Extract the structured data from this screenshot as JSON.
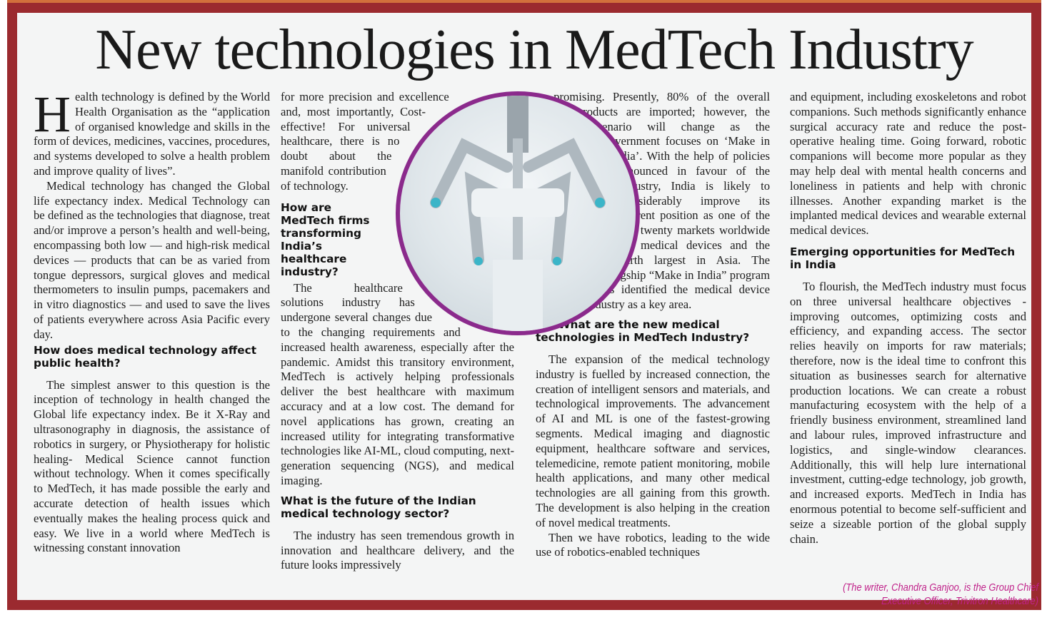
{
  "title": "New technologies in MedTech Industry",
  "colors": {
    "frame": "#9b2a2f",
    "strip": "#d2703c",
    "image_ring": "#8b2a8c",
    "credit": "#c0228a"
  },
  "image": {
    "icon": "surgical-robot-photo"
  },
  "col1": {
    "dropcap": "H",
    "p1": "ealth technology is defined by the World Health Organisation as the “application of organised knowledge and skills in the form of devices, medicines, vaccines, procedures, and systems developed to solve a health problem and improve quality of lives”.",
    "p2": "Medical technology has changed the Global life expectancy index. Medical Technology can be defined as the technologies that diagnose, treat and/or improve a person’s health and well-being, encompassing both low — and high-risk medical devices — products that can be as varied from tongue depressors, surgical gloves and medical thermometers to insulin pumps, pacemakers and in vitro diagnostics — and used to save the lives of patients everywhere across Asia Pacific every day.",
    "h1": "How does medical technology affect public health?",
    "p3": "The simplest answer to this question is the inception of technology in health changed the Global life expectancy index. Be it X-Ray and ultrasonography in diagnosis, the assistance of robotics in surgery, or Physiotherapy for holistic healing- Medical Science cannot function without technology. When it comes specifically to MedTech, it has made possible the early and accurate detection of health issues which eventually makes the healing process quick and easy. We live in a world where MedTech is witnessing constant innovation"
  },
  "col2": {
    "p1": "for more precision and excellence and, most importantly, Cost-effective! For universal healthcare, there is no doubt about the manifold contribution of technology.",
    "h1": "How are MedTech firms transforming India’s healthcare industry?",
    "p2": "The healthcare solutions industry has undergone several changes due to the changing requirements and increased health awareness, especially after the pandemic. Amidst this transitory environment, MedTech is actively helping professionals deliver the best healthcare with maximum accuracy and at a low cost. The demand for novel applications has grown, creating an increased utility for integrating transformative technologies like AI-ML, cloud computing, next-generation sequencing (NGS), and medical imaging.",
    "h2": "What is the future of the Indian medical technology sector?",
    "p3": "The industry has seen tremendous growth in innovation and healthcare delivery, and the future looks impressively"
  },
  "col3": {
    "p1": "promising. Presently, 80% of the overall products are imported; however, the scenario will change as the government focuses on ‘Make in India’. With the help of policies announced in favour of the industry, India is likely to considerably improve its current position as one of the top twenty markets worldwide for medical devices and the fourth largest in Asia. The flagship “Make in India” program has identified the medical device industry as a key area.",
    "h1": "What are the new medical technologies in MedTech Industry?",
    "p2": "The expansion of the medical technology industry is fuelled by increased connection, the creation of intelligent sensors and materials, and technological improvements. The advancement of AI and ML is one of the fastest-growing segments. Medical imaging and diagnostic equipment, healthcare software and services, telemedicine, remote patient monitoring, mobile health applications, and many other medical technologies are all gaining from this growth. The development is also helping in the creation of novel medical treatments.",
    "p3": "Then we have robotics, leading to the wide use of robotics-enabled techniques"
  },
  "col4": {
    "p1": "and equipment, including exoskeletons and robot companions. Such methods significantly enhance surgical accuracy rate and reduce the post-operative healing time. Going forward, robotic companions will become more popular as they may help deal with mental health concerns and loneliness in patients and help with chronic illnesses. Another expanding market is the implanted medical devices and wearable external medical devices.",
    "h1": "Emerging opportunities for MedTech in India",
    "p2": "To flourish, the MedTech industry must focus on three universal healthcare objectives - improving outcomes, optimizing costs and efficiency, and expanding access. The sector relies heavily on imports for raw materials; therefore, now is the ideal time to confront this situation as businesses search for alternative production locations. We can create a robust manufacturing ecosystem with the help of a friendly business environment, streamlined land and labour rules, improved infrastructure and logistics, and single-window clearances. Additionally, this will help lure international investment, cutting-edge technology, job growth, and increased exports. MedTech in India has enormous potential to become self-sufficient and seize a sizeable portion of the global supply chain.",
    "credit": "(The writer, Chandra Ganjoo, is the Group Chief Executive Officer, Trivitron Healthcare)"
  }
}
